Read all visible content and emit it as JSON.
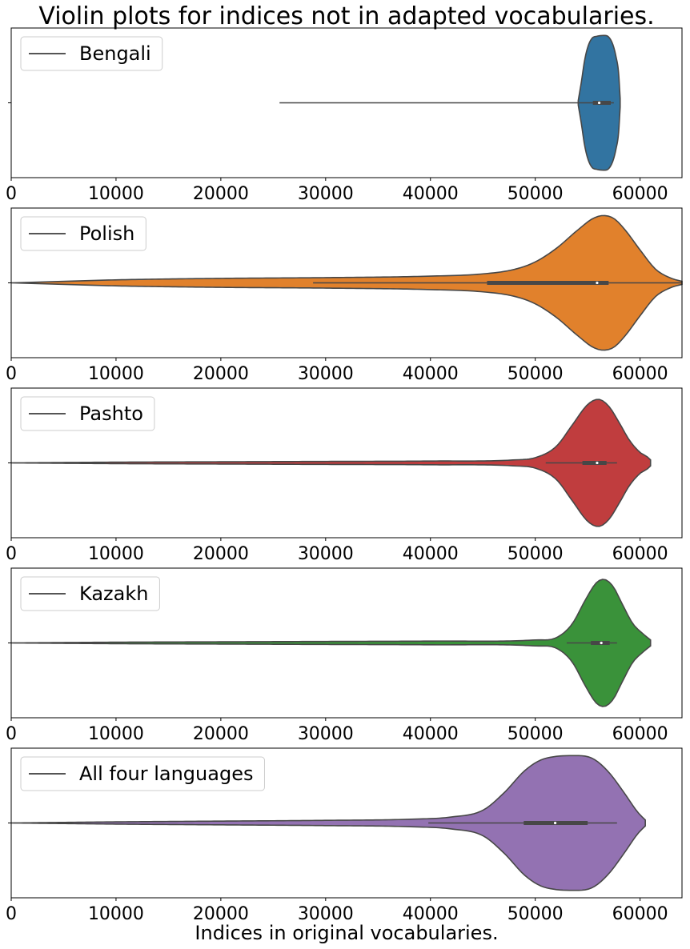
{
  "figure": {
    "title": "Violin plots for indices not in adapted vocabularies.",
    "xlabel": "Indices in original vocabularies."
  },
  "chart_data": [
    {
      "type": "violin",
      "legend": "Bengali",
      "color": "#3274a1",
      "xlim": [
        0,
        64000
      ],
      "xticks": [
        0,
        10000,
        20000,
        30000,
        40000,
        50000,
        60000
      ],
      "grid": false,
      "legend_position": "upper-left",
      "extent": [
        54100,
        58100
      ],
      "density": [
        [
          54100,
          0.03
        ],
        [
          54400,
          0.28
        ],
        [
          54700,
          0.56
        ],
        [
          55000,
          0.74
        ],
        [
          55400,
          0.86
        ],
        [
          55900,
          0.89
        ],
        [
          56500,
          0.9
        ],
        [
          57000,
          0.88
        ],
        [
          57400,
          0.78
        ],
        [
          57700,
          0.62
        ],
        [
          57950,
          0.4
        ],
        [
          58100,
          0.06
        ]
      ],
      "whiskers": [
        25600,
        57500
      ],
      "quartiles": [
        55500,
        57200
      ],
      "median": 56100
    },
    {
      "type": "violin",
      "legend": "Polish",
      "color": "#e1812c",
      "xlim": [
        0,
        64000
      ],
      "xticks": [
        0,
        10000,
        20000,
        30000,
        40000,
        50000,
        60000
      ],
      "grid": false,
      "legend_position": "upper-left",
      "extent": [
        0,
        64000
      ],
      "density": [
        [
          0,
          0.0
        ],
        [
          5000,
          0.02
        ],
        [
          10000,
          0.04
        ],
        [
          20000,
          0.06
        ],
        [
          30000,
          0.07
        ],
        [
          40000,
          0.09
        ],
        [
          45000,
          0.12
        ],
        [
          48000,
          0.18
        ],
        [
          50000,
          0.28
        ],
        [
          52000,
          0.46
        ],
        [
          54000,
          0.7
        ],
        [
          55500,
          0.86
        ],
        [
          56500,
          0.9
        ],
        [
          57500,
          0.86
        ],
        [
          58500,
          0.72
        ],
        [
          60000,
          0.44
        ],
        [
          61500,
          0.18
        ],
        [
          63000,
          0.06
        ],
        [
          64000,
          0.02
        ]
      ],
      "whiskers": [
        28800,
        64000
      ],
      "quartiles": [
        45400,
        57000
      ],
      "median": 55900
    },
    {
      "type": "violin",
      "legend": "Pashto",
      "color": "#c03d3e",
      "xlim": [
        0,
        64000
      ],
      "xticks": [
        0,
        10000,
        20000,
        30000,
        40000,
        50000,
        60000
      ],
      "grid": false,
      "legend_position": "upper-left",
      "extent": [
        0,
        61000
      ],
      "density": [
        [
          0,
          0.0
        ],
        [
          10000,
          0.01
        ],
        [
          20000,
          0.015
        ],
        [
          30000,
          0.02
        ],
        [
          40000,
          0.025
        ],
        [
          48000,
          0.04
        ],
        [
          50000,
          0.07
        ],
        [
          52000,
          0.22
        ],
        [
          53500,
          0.5
        ],
        [
          55000,
          0.78
        ],
        [
          56000,
          0.85
        ],
        [
          57000,
          0.76
        ],
        [
          58000,
          0.54
        ],
        [
          59000,
          0.3
        ],
        [
          60000,
          0.14
        ],
        [
          60700,
          0.08
        ],
        [
          61000,
          0.04
        ]
      ],
      "whiskers": [
        51000,
        57800
      ],
      "quartiles": [
        54500,
        56800
      ],
      "median": 55900
    },
    {
      "type": "violin",
      "legend": "Kazakh",
      "color": "#3a923a",
      "xlim": [
        0,
        64000
      ],
      "xticks": [
        0,
        10000,
        20000,
        30000,
        40000,
        50000,
        60000
      ],
      "grid": false,
      "legend_position": "upper-left",
      "extent": [
        0,
        61000
      ],
      "density": [
        [
          0,
          0.0
        ],
        [
          10000,
          0.01
        ],
        [
          20000,
          0.015
        ],
        [
          30000,
          0.02
        ],
        [
          40000,
          0.025
        ],
        [
          50000,
          0.04
        ],
        [
          52000,
          0.07
        ],
        [
          53500,
          0.25
        ],
        [
          54800,
          0.58
        ],
        [
          55800,
          0.8
        ],
        [
          56500,
          0.85
        ],
        [
          57400,
          0.76
        ],
        [
          58300,
          0.52
        ],
        [
          59300,
          0.26
        ],
        [
          60300,
          0.12
        ],
        [
          61000,
          0.04
        ]
      ],
      "whiskers": [
        53000,
        57800
      ],
      "quartiles": [
        55300,
        57100
      ],
      "median": 56300
    },
    {
      "type": "violin",
      "legend": "All four languages",
      "color": "#9372b2",
      "xlim": [
        0,
        64000
      ],
      "xticks": [
        0,
        10000,
        20000,
        30000,
        40000,
        50000,
        60000
      ],
      "grid": false,
      "legend_position": "upper-left",
      "extent": [
        0,
        60500
      ],
      "density": [
        [
          0,
          0.0
        ],
        [
          10000,
          0.015
        ],
        [
          20000,
          0.025
        ],
        [
          30000,
          0.035
        ],
        [
          38000,
          0.05
        ],
        [
          42000,
          0.08
        ],
        [
          45000,
          0.17
        ],
        [
          47000,
          0.4
        ],
        [
          49000,
          0.7
        ],
        [
          50500,
          0.84
        ],
        [
          52000,
          0.89
        ],
        [
          54000,
          0.9
        ],
        [
          55500,
          0.86
        ],
        [
          57000,
          0.68
        ],
        [
          58500,
          0.4
        ],
        [
          59800,
          0.14
        ],
        [
          60500,
          0.04
        ]
      ],
      "whiskers": [
        39800,
        57800
      ],
      "quartiles": [
        48900,
        55000
      ],
      "median": 51900
    }
  ]
}
